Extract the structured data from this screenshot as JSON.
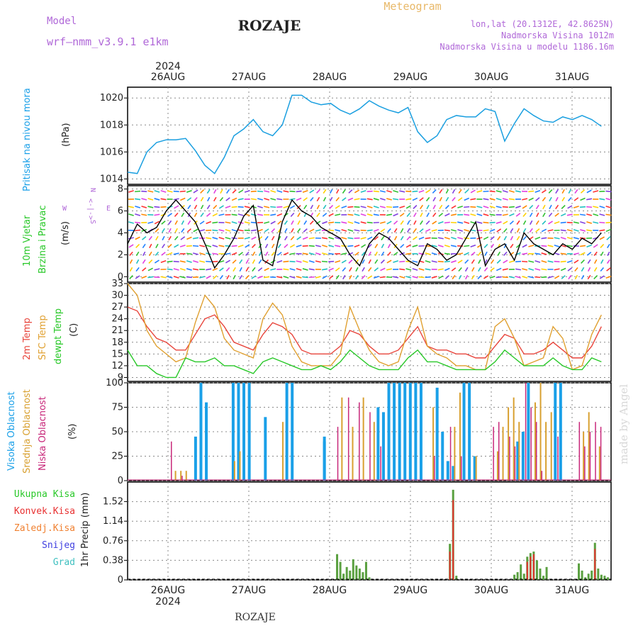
{
  "header": {
    "model_label": "Model",
    "model_name": "wrf—nmm_v3.9.1  e1km",
    "station": "ROZAJE",
    "meteogram": "Meteogram",
    "lonlat": "lon,lat (20.1312E, 42.8625N)",
    "altitude": "Nadmorska Visina 1012m",
    "model_altitude": "Nadmorska Visina u modelu 1186.16m",
    "footer_station": "ROZAJE",
    "watermark": "made by Angel",
    "year_top": "2024",
    "year_bottom": "2024"
  },
  "colors": {
    "pressure": "#1a9fe0",
    "t2m": "#e8453c",
    "sfc": "#e0a030",
    "dewpt": "#28c828",
    "high_cloud": "#1aa0e8",
    "mid_cloud": "#d8a030",
    "low_cloud": "#c8287a",
    "precip_total": "#5aa040",
    "precip_conv": "#e83030",
    "precip_strat": "#f08030",
    "snow": "#4040e0",
    "hail": "#40c0c0"
  },
  "panel_labels": {
    "pressure": [
      "Pritisak na nivou mora",
      "(hPa)"
    ],
    "wind": [
      "10m Vjetar",
      "Brzina i Pravac",
      "(m/s)"
    ],
    "wind_compass": [
      "N",
      "<-|->",
      "S",
      "W",
      "E"
    ],
    "temp": [
      "2m Temp",
      "SFC Temp",
      "dewpt Temp",
      "(C)"
    ],
    "cloud": [
      "Visoka Oblacnost",
      "Srednja Oblacnost",
      "Niska Oblacnost",
      "(%)"
    ],
    "precip": [
      "Ukupna Kisa",
      "Konvek.Kisa",
      "Zaledj.Kisa",
      "Snijeg",
      "Grad",
      "1hr Precip (mm)"
    ]
  },
  "chart_data": [
    {
      "type": "line",
      "name": "pressure",
      "x_categories": [
        "26AUG",
        "27AUG",
        "28AUG",
        "29AUG",
        "30AUG",
        "31AUG"
      ],
      "ylim": [
        1013.6,
        1020.8
      ],
      "yticks": [
        1014,
        1016,
        1018,
        1020
      ],
      "ylabel": "(hPa)",
      "grid": true,
      "x_hours": [
        0,
        3,
        6,
        9,
        12,
        15,
        18,
        21,
        24,
        27,
        30,
        33,
        36,
        39,
        42,
        45,
        48,
        51,
        54,
        57,
        60,
        63,
        66,
        69,
        72,
        75,
        78,
        81,
        84,
        87,
        90,
        93,
        96,
        99,
        102,
        105,
        108,
        111,
        114,
        117,
        120,
        123,
        126,
        129,
        132,
        135,
        138,
        141,
        144,
        147
      ],
      "series": [
        {
          "values": [
            1014.5,
            1014.4,
            1016.0,
            1016.7,
            1016.9,
            1016.9,
            1017.0,
            1016.1,
            1015.0,
            1014.4,
            1015.6,
            1017.2,
            1017.7,
            1018.4,
            1017.5,
            1017.2,
            1018.0,
            1020.2,
            1020.2,
            1019.7,
            1019.5,
            1019.6,
            1019.1,
            1018.8,
            1019.2,
            1019.8,
            1019.4,
            1019.1,
            1018.9,
            1019.3,
            1017.5,
            1016.7,
            1017.2,
            1018.4,
            1018.7,
            1018.6,
            1018.6,
            1019.2,
            1019.0,
            1016.8,
            1018.1,
            1019.2,
            1018.7,
            1018.3,
            1018.2,
            1018.6,
            1018.4,
            1018.7,
            1018.4,
            1017.9
          ]
        }
      ]
    },
    {
      "type": "line",
      "name": "wind",
      "ylim": [
        -0.5,
        8.3
      ],
      "yticks": [
        0,
        2,
        4,
        6,
        8
      ],
      "ylabel": "(m/s)",
      "grid": true,
      "x_hours": [
        0,
        3,
        6,
        9,
        12,
        15,
        18,
        21,
        24,
        27,
        30,
        33,
        36,
        39,
        42,
        45,
        48,
        51,
        54,
        57,
        60,
        63,
        66,
        69,
        72,
        75,
        78,
        81,
        84,
        87,
        90,
        93,
        96,
        99,
        102,
        105,
        108,
        111,
        114,
        117,
        120,
        123,
        126,
        129,
        132,
        135,
        138,
        141,
        144,
        147
      ],
      "series": [
        {
          "values": [
            3.0,
            4.8,
            4.0,
            4.5,
            6.0,
            7.0,
            6.0,
            5.0,
            3.0,
            0.8,
            2.0,
            3.5,
            5.5,
            6.5,
            1.5,
            1.0,
            5.0,
            7.0,
            6.0,
            5.5,
            4.5,
            4.0,
            3.5,
            2.0,
            1.0,
            3.0,
            4.0,
            3.5,
            2.5,
            1.5,
            1.0,
            3.0,
            2.5,
            1.5,
            2.0,
            3.5,
            5.0,
            1.0,
            2.5,
            3.0,
            1.5,
            4.0,
            3.0,
            2.5,
            2.0,
            3.0,
            2.5,
            3.5,
            3.0,
            4.0
          ]
        }
      ]
    },
    {
      "type": "line",
      "name": "temperature",
      "ylim": [
        8,
        33
      ],
      "yticks": [
        9,
        12,
        15,
        18,
        21,
        24,
        27,
        30,
        33
      ],
      "ylabel": "(C)",
      "grid": true,
      "x_hours": [
        0,
        3,
        6,
        9,
        12,
        15,
        18,
        21,
        24,
        27,
        30,
        33,
        36,
        39,
        42,
        45,
        48,
        51,
        54,
        57,
        60,
        63,
        66,
        69,
        72,
        75,
        78,
        81,
        84,
        87,
        90,
        93,
        96,
        99,
        102,
        105,
        108,
        111,
        114,
        117,
        120,
        123,
        126,
        129,
        132,
        135,
        138,
        141,
        144,
        147
      ],
      "series": [
        {
          "name": "2m Temp",
          "values": [
            27,
            26,
            22,
            19,
            18,
            16,
            16,
            20,
            24,
            25,
            22,
            18,
            17,
            16,
            20,
            23,
            22,
            20,
            16,
            15,
            15,
            15,
            17,
            21,
            20,
            17,
            15,
            15,
            16,
            19,
            22,
            17,
            16,
            16,
            15,
            15,
            14,
            14,
            17,
            20,
            19,
            15,
            15,
            16,
            18,
            16,
            14,
            14,
            17,
            22
          ]
        },
        {
          "name": "SFC Temp",
          "values": [
            33,
            30,
            21,
            17,
            15,
            13,
            14,
            23,
            30,
            27,
            19,
            16,
            15,
            14,
            24,
            28,
            25,
            17,
            13,
            12,
            12,
            12,
            15,
            27,
            21,
            16,
            13,
            12,
            13,
            21,
            27,
            17,
            15,
            14,
            12,
            12,
            11,
            11,
            22,
            24,
            19,
            12,
            13,
            14,
            22,
            19,
            11,
            12,
            20,
            25
          ]
        },
        {
          "name": "dewpt Temp",
          "values": [
            16,
            12,
            12,
            10,
            9,
            9,
            14,
            13,
            13,
            14,
            12,
            12,
            11,
            10,
            13,
            14,
            13,
            12,
            11,
            11,
            12,
            11,
            13,
            16,
            14,
            12,
            11,
            11,
            11,
            14,
            16,
            13,
            13,
            12,
            11,
            11,
            11,
            11,
            13,
            16,
            14,
            12,
            12,
            12,
            14,
            12,
            11,
            11,
            14,
            13
          ]
        }
      ]
    },
    {
      "type": "bar",
      "name": "cloud",
      "ylim": [
        0,
        100
      ],
      "yticks": [
        0,
        25,
        50,
        75,
        100
      ],
      "ylabel": "(%)",
      "grid": true,
      "series": [
        {
          "name": "Visoka Oblacnost",
          "bars": [
            [
              12,
              45
            ],
            [
              13,
              100
            ],
            [
              14,
              80
            ],
            [
              19,
              100
            ],
            [
              20,
              100
            ],
            [
              21,
              100
            ],
            [
              22,
              100
            ],
            [
              25,
              65
            ],
            [
              29,
              100
            ],
            [
              30,
              100
            ],
            [
              36,
              40
            ],
            [
              36,
              45
            ],
            [
              46,
              75
            ],
            [
              47,
              70
            ],
            [
              48,
              100
            ],
            [
              49,
              100
            ],
            [
              50,
              100
            ],
            [
              51,
              100
            ],
            [
              52,
              100
            ],
            [
              53,
              100
            ],
            [
              54,
              100
            ],
            [
              57,
              95
            ],
            [
              58,
              50
            ],
            [
              59,
              20
            ],
            [
              60,
              15
            ],
            [
              62,
              100
            ],
            [
              63,
              100
            ],
            [
              64,
              25
            ],
            [
              72,
              40
            ],
            [
              73,
              50
            ],
            [
              74,
              100
            ],
            [
              79,
              100
            ],
            [
              80,
              100
            ]
          ]
        },
        {
          "name": "Srednja Oblacnost",
          "bars": [
            [
              8,
              10
            ],
            [
              9,
              10
            ],
            [
              10,
              10
            ],
            [
              19,
              20
            ],
            [
              20,
              30
            ],
            [
              28,
              60
            ],
            [
              39,
              85
            ],
            [
              41,
              55
            ],
            [
              43,
              85
            ],
            [
              45,
              60
            ],
            [
              56,
              75
            ],
            [
              60,
              55
            ],
            [
              61,
              90
            ],
            [
              64,
              25
            ],
            [
              68,
              30
            ],
            [
              69,
              55
            ],
            [
              70,
              75
            ],
            [
              71,
              85
            ],
            [
              72,
              60
            ],
            [
              75,
              80
            ],
            [
              76,
              100
            ],
            [
              77,
              60
            ],
            [
              78,
              70
            ],
            [
              84,
              50
            ],
            [
              85,
              70
            ],
            [
              87,
              35
            ]
          ]
        },
        {
          "name": "Niska Oblacnost",
          "bars": [
            [
              7,
              40
            ],
            [
              9,
              5
            ],
            [
              38,
              55
            ],
            [
              40,
              85
            ],
            [
              42,
              80
            ],
            [
              44,
              70
            ],
            [
              46,
              35
            ],
            [
              56,
              25
            ],
            [
              59,
              55
            ],
            [
              61,
              25
            ],
            [
              67,
              55
            ],
            [
              68,
              60
            ],
            [
              70,
              45
            ],
            [
              71,
              35
            ],
            [
              73,
              100
            ],
            [
              74,
              75
            ],
            [
              75,
              60
            ],
            [
              76,
              10
            ],
            [
              79,
              45
            ],
            [
              83,
              60
            ],
            [
              84,
              35
            ],
            [
              85,
              50
            ],
            [
              86,
              60
            ],
            [
              87,
              55
            ]
          ]
        }
      ]
    },
    {
      "type": "bar",
      "name": "precipitation",
      "ylim": [
        0,
        1.9
      ],
      "yticks": [
        0,
        0.38,
        0.76,
        1.14,
        1.52
      ],
      "ylabel": "1hr Precip (mm)",
      "grid": true,
      "series": [
        {
          "name": "Ukupna Kisa",
          "bars": [
            [
              65,
              0.5
            ],
            [
              66,
              0.35
            ],
            [
              67,
              0.12
            ],
            [
              68,
              0.25
            ],
            [
              69,
              0.18
            ],
            [
              70,
              0.4
            ],
            [
              71,
              0.28
            ],
            [
              72,
              0.22
            ],
            [
              73,
              0.15
            ],
            [
              74,
              0.35
            ],
            [
              75,
              0.05
            ],
            [
              100,
              0.7
            ],
            [
              101,
              1.75
            ],
            [
              102,
              0.08
            ],
            [
              120,
              0.1
            ],
            [
              121,
              0.15
            ],
            [
              122,
              0.3
            ],
            [
              123,
              0.12
            ],
            [
              124,
              0.45
            ],
            [
              125,
              0.52
            ],
            [
              126,
              0.55
            ],
            [
              127,
              0.38
            ],
            [
              128,
              0.22
            ],
            [
              129,
              0.08
            ],
            [
              130,
              0.25
            ],
            [
              140,
              0.32
            ],
            [
              141,
              0.18
            ],
            [
              142,
              0.05
            ],
            [
              143,
              0.12
            ],
            [
              144,
              0.18
            ],
            [
              145,
              0.72
            ],
            [
              146,
              0.22
            ],
            [
              147,
              0.1
            ],
            [
              148,
              0.08
            ],
            [
              149,
              0.05
            ]
          ]
        },
        {
          "name": "Konvek.Kisa",
          "bars": [
            [
              100,
              0.55
            ],
            [
              101,
              1.55
            ],
            [
              124,
              0.35
            ],
            [
              125,
              0.45
            ],
            [
              126,
              0.5
            ],
            [
              145,
              0.6
            ]
          ]
        }
      ]
    }
  ]
}
